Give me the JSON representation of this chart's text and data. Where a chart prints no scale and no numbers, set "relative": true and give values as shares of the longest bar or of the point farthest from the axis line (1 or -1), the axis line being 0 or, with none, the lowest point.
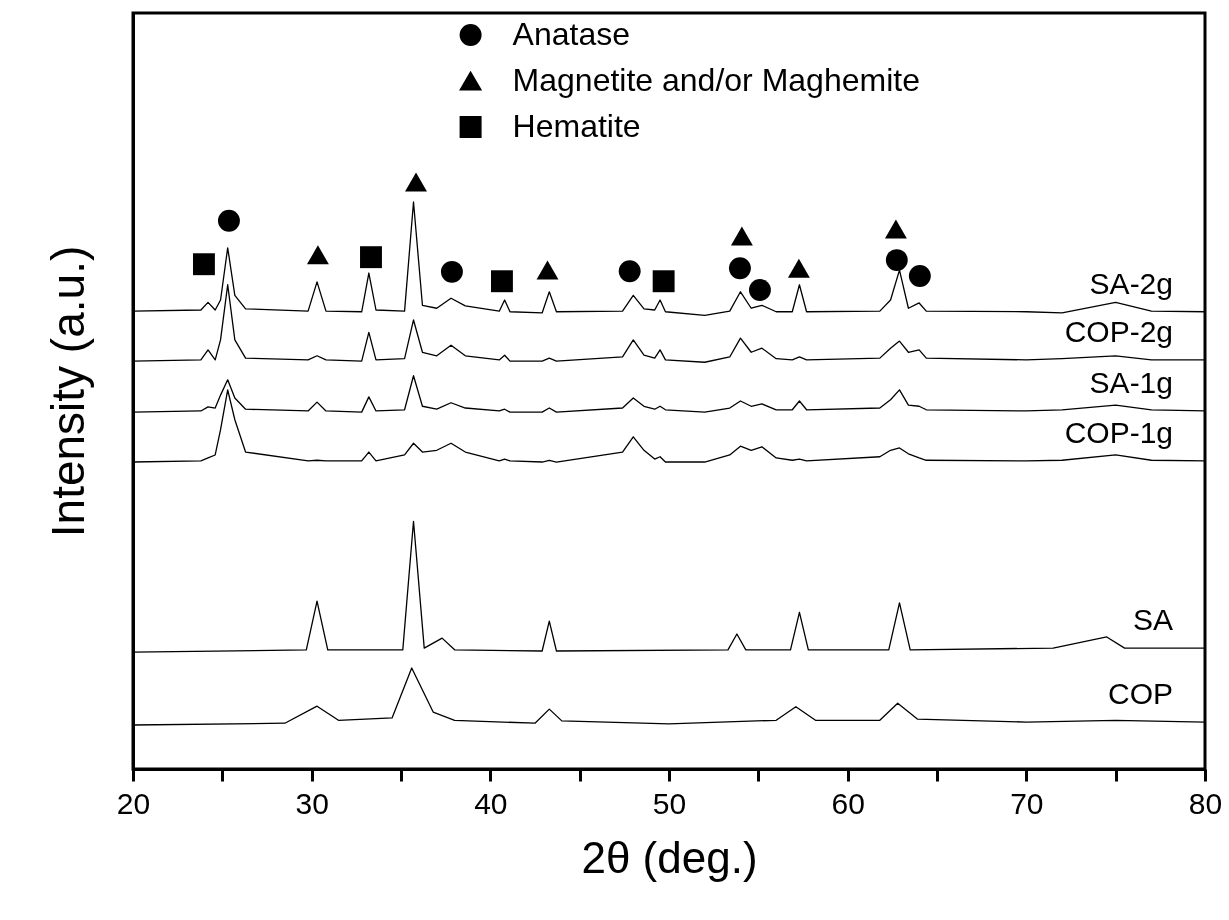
{
  "chart_data": {
    "type": "line",
    "xlabel": "2θ (deg.)",
    "ylabel": "Intensity (a.u.)",
    "relative": true,
    "legend": "top",
    "xlim": [
      20,
      80
    ],
    "xticks": [
      20,
      {
        "value": 25,
        "label": null
      },
      30,
      {
        "value": 35,
        "label": null
      },
      40,
      {
        "value": 45,
        "label": null
      },
      50,
      {
        "value": 55,
        "label": null
      },
      60,
      {
        "value": 65,
        "label": null
      },
      70,
      {
        "value": 75,
        "label": null
      },
      80
    ],
    "x": [
      20,
      23.8,
      24.2,
      24.6,
      24.9,
      25.3,
      25.7,
      26.3,
      29.8,
      30.3,
      30.8,
      32.8,
      33.2,
      33.6,
      35.2,
      35.7,
      36.2,
      37,
      37.8,
      38.6,
      40.5,
      40.8,
      41.1,
      42.9,
      43.3,
      43.7,
      47.4,
      48,
      48.6,
      49.2,
      49.5,
      49.8,
      52,
      53.4,
      54,
      54.6,
      55.2,
      56,
      56.9,
      57.3,
      57.7,
      61.8,
      62.4,
      62.9,
      63.4,
      64,
      64.4,
      70,
      72,
      75,
      77,
      80
    ],
    "series": [
      {
        "name": "SA-2g",
        "color": "#000000",
        "values": [
          0.78,
          0.782,
          0.795,
          0.782,
          0.799,
          0.888,
          0.807,
          0.784,
          0.78,
          0.83,
          0.78,
          0.779,
          0.845,
          0.782,
          0.78,
          0.966,
          0.79,
          0.785,
          0.802,
          0.789,
          0.78,
          0.799,
          0.779,
          0.777,
          0.813,
          0.779,
          0.78,
          0.807,
          0.784,
          0.782,
          0.799,
          0.779,
          0.773,
          0.78,
          0.813,
          0.785,
          0.79,
          0.779,
          0.779,
          0.825,
          0.779,
          0.78,
          0.799,
          0.85,
          0.785,
          0.794,
          0.78,
          0.779,
          0.777,
          0.795,
          0.78,
          0.779
        ]
      },
      {
        "name": "COP-2g",
        "color": "#000000",
        "values": [
          0.695,
          0.697,
          0.714,
          0.697,
          0.731,
          0.825,
          0.731,
          0.7,
          0.697,
          0.704,
          0.697,
          0.695,
          0.744,
          0.697,
          0.699,
          0.765,
          0.71,
          0.704,
          0.722,
          0.704,
          0.697,
          0.705,
          0.695,
          0.695,
          0.7,
          0.695,
          0.702,
          0.731,
          0.705,
          0.7,
          0.714,
          0.697,
          0.693,
          0.702,
          0.734,
          0.71,
          0.717,
          0.699,
          0.697,
          0.702,
          0.697,
          0.7,
          0.717,
          0.729,
          0.71,
          0.714,
          0.7,
          0.697,
          0.699,
          0.704,
          0.697,
          0.697
        ]
      },
      {
        "name": "SA-1g",
        "color": "#000000",
        "values": [
          0.608,
          0.61,
          0.617,
          0.615,
          0.637,
          0.663,
          0.632,
          0.613,
          0.61,
          0.625,
          0.61,
          0.608,
          0.634,
          0.61,
          0.612,
          0.67,
          0.618,
          0.613,
          0.624,
          0.615,
          0.61,
          0.613,
          0.608,
          0.608,
          0.615,
          0.608,
          0.615,
          0.632,
          0.618,
          0.613,
          0.618,
          0.612,
          0.608,
          0.615,
          0.627,
          0.618,
          0.622,
          0.612,
          0.612,
          0.627,
          0.612,
          0.615,
          0.629,
          0.646,
          0.62,
          0.618,
          0.612,
          0.61,
          0.612,
          0.62,
          0.612,
          0.61
        ]
      },
      {
        "name": "COP-1g",
        "color": "#000000",
        "values": [
          0.523,
          0.525,
          0.53,
          0.535,
          0.578,
          0.646,
          0.595,
          0.54,
          0.525,
          0.526,
          0.525,
          0.525,
          0.54,
          0.525,
          0.535,
          0.555,
          0.54,
          0.543,
          0.555,
          0.54,
          0.525,
          0.528,
          0.525,
          0.523,
          0.526,
          0.523,
          0.54,
          0.566,
          0.543,
          0.528,
          0.532,
          0.523,
          0.523,
          0.535,
          0.55,
          0.543,
          0.549,
          0.53,
          0.526,
          0.528,
          0.525,
          0.532,
          0.543,
          0.547,
          0.537,
          0.53,
          0.526,
          0.525,
          0.526,
          0.535,
          0.526,
          0.525
        ]
      },
      {
        "name": "SA",
        "color": "#000000",
        "x": [
          20,
          29.7,
          30.3,
          30.9,
          35.1,
          35.7,
          36.3,
          37.3,
          38,
          42.9,
          43.3,
          43.7,
          53.3,
          53.8,
          54.3,
          56.8,
          57.3,
          57.8,
          62.3,
          62.9,
          63.5,
          71.5,
          74.5,
          75.5,
          80
        ],
        "values": [
          0.199,
          0.203,
          0.286,
          0.203,
          0.203,
          0.422,
          0.206,
          0.223,
          0.203,
          0.201,
          0.252,
          0.201,
          0.203,
          0.23,
          0.203,
          0.203,
          0.267,
          0.203,
          0.203,
          0.283,
          0.203,
          0.206,
          0.225,
          0.206,
          0.206
        ]
      },
      {
        "name": "COP",
        "color": "#000000",
        "x": [
          20,
          28.5,
          30.3,
          31.5,
          34.5,
          35.6,
          36.8,
          38,
          42.5,
          43.3,
          44,
          50,
          56,
          57.1,
          58.2,
          61.8,
          62.8,
          63.9,
          70,
          75,
          80
        ],
        "values": [
          0.075,
          0.078,
          0.107,
          0.083,
          0.087,
          0.172,
          0.097,
          0.083,
          0.078,
          0.102,
          0.082,
          0.077,
          0.083,
          0.106,
          0.083,
          0.083,
          0.112,
          0.085,
          0.08,
          0.083,
          0.08
        ]
      },
      {
        "name": "Anatase",
        "type": "scatter",
        "marker": "circle",
        "color": "#000000",
        "x": [
          25.37,
          37.85,
          47.8,
          53.97,
          55.09,
          62.75,
          64.04
        ],
        "values": [
          0.934,
          0.847,
          0.848,
          0.853,
          0.816,
          0.867,
          0.84
        ]
      },
      {
        "name": "Magnetite and/or Maghemite",
        "type": "scatter",
        "marker": "triangle",
        "color": "#000000",
        "x": [
          30.35,
          35.84,
          43.2,
          54.08,
          57.27,
          62.7
        ],
        "values": [
          0.876,
          1.0,
          0.85,
          0.908,
          0.853,
          0.92
        ]
      },
      {
        "name": "Hematite",
        "type": "scatter",
        "marker": "square",
        "color": "#000000",
        "x": [
          23.97,
          33.32,
          40.65,
          49.7
        ],
        "values": [
          0.86,
          0.872,
          0.831,
          0.831
        ]
      }
    ]
  }
}
